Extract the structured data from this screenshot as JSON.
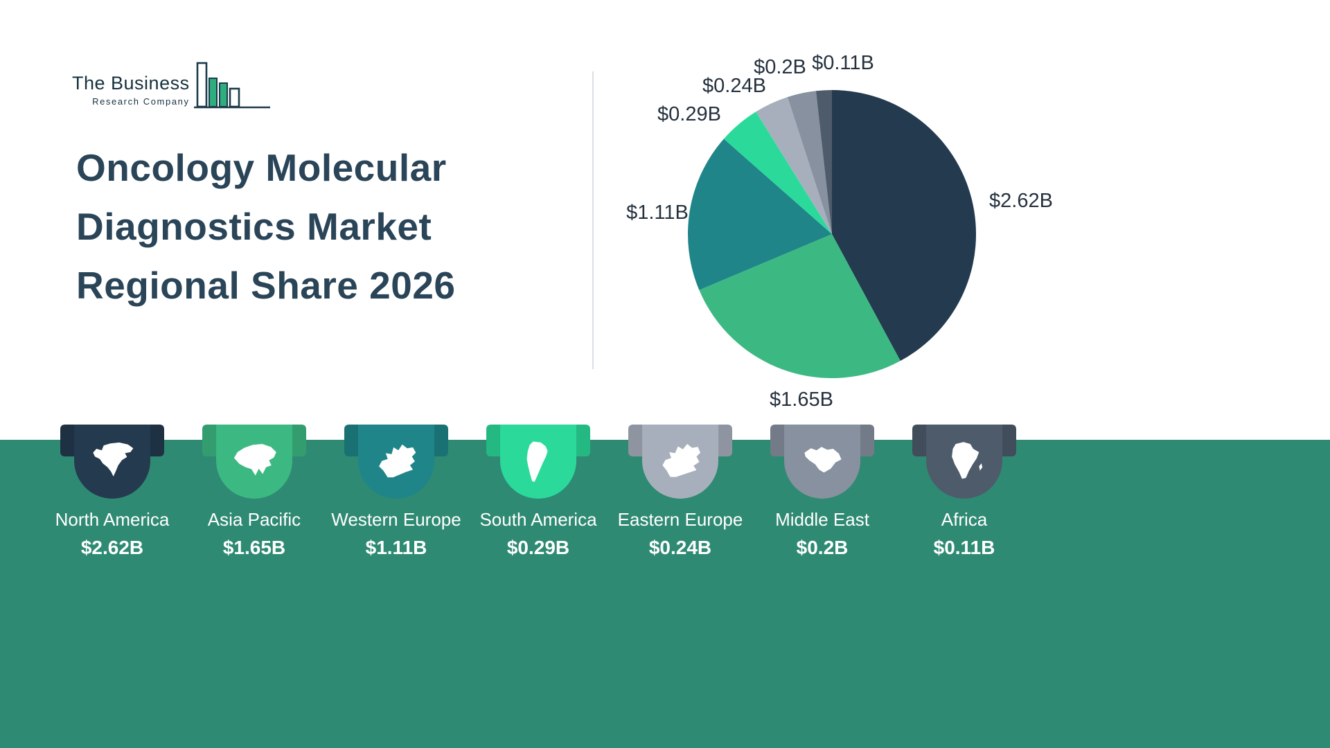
{
  "page": {
    "background": "#FFFFFF",
    "banner_color": "#2F8A73"
  },
  "logo": {
    "line1": "The Business",
    "line2": "Research Company"
  },
  "title": {
    "lines": [
      "Oncology Molecular",
      "Diagnostics Market",
      "Regional Share 2026"
    ],
    "color": "#2A4458"
  },
  "chart_data": {
    "type": "pie",
    "title": "Oncology Molecular Diagnostics Market Regional Share 2026",
    "start_angle_deg": 0,
    "direction": "clockwise",
    "legend_position": "bottom-cards",
    "slices": [
      {
        "name": "North America",
        "value": 2.62,
        "display": "$2.62B",
        "color": "#243A4F",
        "icon": "north-america",
        "label_pos": [
          624,
          243
        ]
      },
      {
        "name": "Asia Pacific",
        "value": 1.65,
        "display": "$1.65B",
        "color": "#3CB983",
        "icon": "asia-pacific",
        "label_pos": [
          307,
          530
        ]
      },
      {
        "name": "Western Europe",
        "value": 1.11,
        "display": "$1.11B",
        "color": "#1F8589",
        "icon": "western-europe",
        "label_pos": [
          99,
          260
        ]
      },
      {
        "name": "South America",
        "value": 0.29,
        "display": "$0.29B",
        "color": "#2BDA9B",
        "icon": "south-america",
        "label_pos": [
          145,
          118
        ]
      },
      {
        "name": "Eastern Europe",
        "value": 0.24,
        "display": "$0.24B",
        "color": "#A8AFBC",
        "icon": "eastern-europe",
        "label_pos": [
          210,
          77
        ]
      },
      {
        "name": "Middle East",
        "value": 0.2,
        "display": "$0.2B",
        "color": "#87919F",
        "icon": "middle-east",
        "label_pos": [
          276,
          50
        ]
      },
      {
        "name": "Africa",
        "value": 0.11,
        "display": "$0.11B",
        "color": "#4E5B6B",
        "icon": "africa",
        "label_pos": [
          367,
          44
        ]
      }
    ]
  }
}
